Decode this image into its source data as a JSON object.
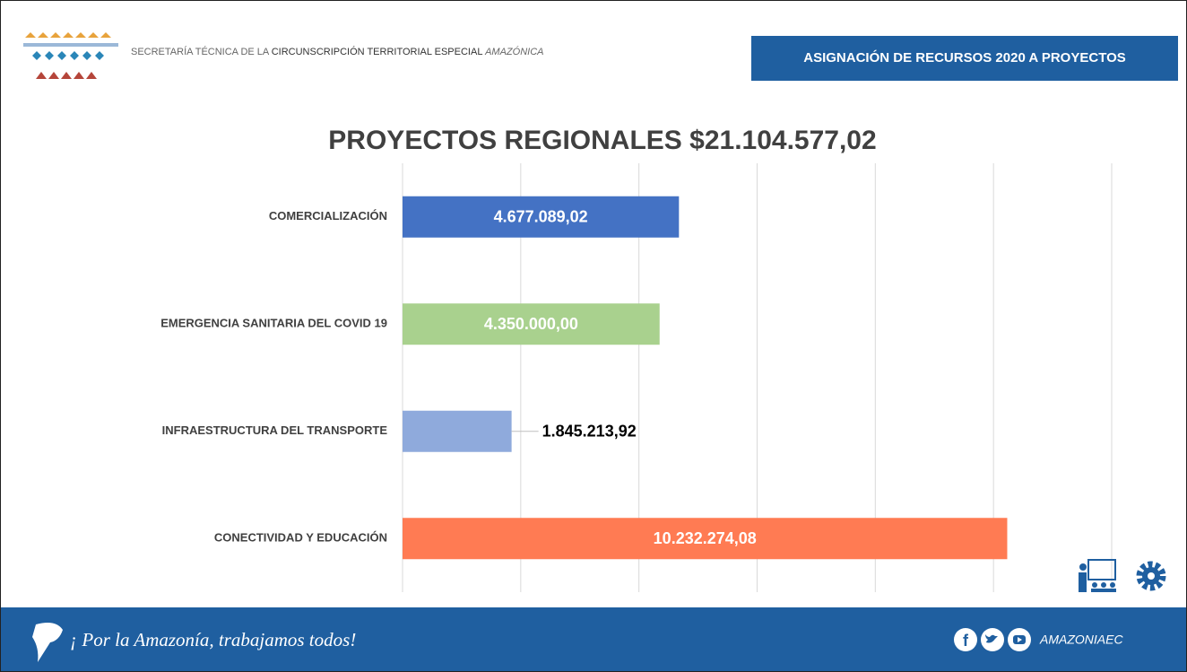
{
  "header": {
    "org_part1": "SECRETARÍA TÉCNICA DE LA",
    "org_part2": "CIRCUNSCRIPCIÓN TERRITORIAL ESPECIAL",
    "org_part3": "AMAZÓNICA",
    "badge": "ASIGNACIÓN DE RECURSOS 2020 A PROYECTOS"
  },
  "footer": {
    "slogan": "¡ Por la Amazonía, trabajamos todos!",
    "handle": "AMAZONIAEC"
  },
  "chart_data": {
    "type": "hbar",
    "title": "PROYECTOS REGIONALES $21.104.577,02",
    "categories": [
      "COMERCIALIZACIÓN",
      "EMERGENCIA SANITARIA DEL COVID 19",
      "INFRAESTRUCTURA DEL TRANSPORTE",
      "CONECTIVIDAD Y EDUCACIÓN"
    ],
    "values": [
      4677089.02,
      4350000,
      1845213.92,
      10232274.08
    ],
    "value_labels": [
      "4.677.089,02",
      "4.350.000,00",
      "1.845.213,92",
      "10.232.274,08"
    ],
    "colors": [
      "#4472c4",
      "#a9d18e",
      "#8faadc",
      "#ff7b53"
    ],
    "xlim": [
      0,
      12000000
    ],
    "xticks": [
      0,
      2000000,
      4000000,
      6000000,
      8000000,
      10000000,
      12000000
    ],
    "grid": true
  }
}
